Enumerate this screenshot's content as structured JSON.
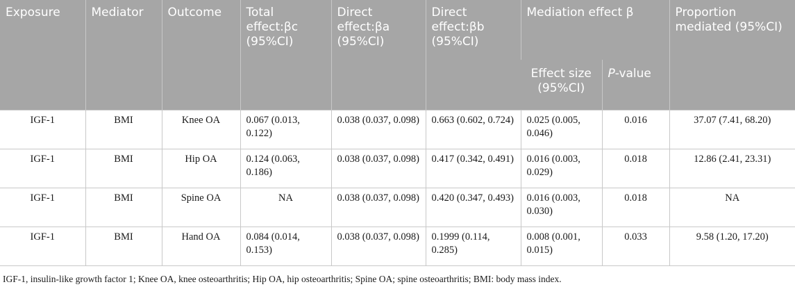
{
  "header": {
    "exposure": "Exposure",
    "mediator": "Mediator",
    "outcome": "Outcome",
    "total_effect": "Total effect:βc (95%CI)",
    "direct_a": "Direct effect:βa (95%CI)",
    "direct_b": "Direct effect:βb (95%CI)",
    "mediation_effect": "Mediation effect β",
    "proportion": "Proportion mediated (95%CI)",
    "effect_size": "Effect size (95%CI)",
    "p_italic": "P",
    "p_rest": "-value"
  },
  "rows": [
    {
      "exposure": "IGF-1",
      "mediator": "BMI",
      "outcome": "Knee OA",
      "total": "0.067 (0.013, 0.122)",
      "direct_a": "0.038 (0.037, 0.098)",
      "direct_b": "0.663 (0.602, 0.724)",
      "effect": "0.025 (0.005, 0.046)",
      "p": "0.016",
      "proportion": "37.07 (7.41, 68.20)"
    },
    {
      "exposure": "IGF-1",
      "mediator": "BMI",
      "outcome": "Hip OA",
      "total": "0.124 (0.063, 0.186)",
      "direct_a": "0.038 (0.037, 0.098)",
      "direct_b": "0.417 (0.342, 0.491)",
      "effect": "0.016 (0.003, 0.029)",
      "p": "0.018",
      "proportion": "12.86 (2.41, 23.31)"
    },
    {
      "exposure": "IGF-1",
      "mediator": "BMI",
      "outcome": "Spine OA",
      "total": "NA",
      "direct_a": "0.038 (0.037, 0.098)",
      "direct_b": "0.420 (0.347, 0.493)",
      "effect": "0.016 (0.003, 0.030)",
      "p": "0.018",
      "proportion": "NA"
    },
    {
      "exposure": "IGF-1",
      "mediator": "BMI",
      "outcome": "Hand OA",
      "total": "0.084 (0.014, 0.153)",
      "direct_a": "0.038 (0.037, 0.098)",
      "direct_b": "0.1999 (0.114, 0.285)",
      "effect": "0.008 (0.001, 0.015)",
      "p": "0.033",
      "proportion": "9.58 (1.20, 17.20)"
    }
  ],
  "footnote": "IGF-1, insulin-like growth factor 1; Knee OA, knee osteoarthritis; Hip OA, hip osteoarthritis; Spine OA; spine osteoarthritis; BMI: body mass index."
}
